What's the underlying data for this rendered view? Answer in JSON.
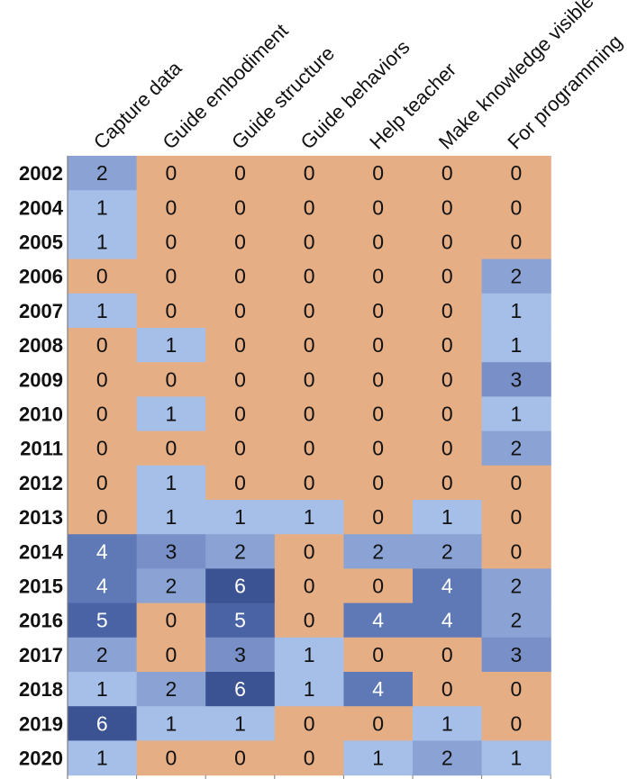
{
  "chart_data": {
    "type": "heatmap",
    "columns": [
      "Capture data",
      "Guide embodiment",
      "Guide structure",
      "Guide behaviors",
      "Help teacher",
      "Make knowledge visible",
      "For programming"
    ],
    "rows": [
      "2002",
      "2004",
      "2005",
      "2006",
      "2007",
      "2008",
      "2009",
      "2010",
      "2011",
      "2012",
      "2013",
      "2014",
      "2015",
      "2016",
      "2017",
      "2018",
      "2019",
      "2020"
    ],
    "values": [
      [
        2,
        0,
        0,
        0,
        0,
        0,
        0
      ],
      [
        1,
        0,
        0,
        0,
        0,
        0,
        0
      ],
      [
        1,
        0,
        0,
        0,
        0,
        0,
        0
      ],
      [
        0,
        0,
        0,
        0,
        0,
        0,
        2
      ],
      [
        1,
        0,
        0,
        0,
        0,
        0,
        1
      ],
      [
        0,
        1,
        0,
        0,
        0,
        0,
        1
      ],
      [
        0,
        0,
        0,
        0,
        0,
        0,
        3
      ],
      [
        0,
        1,
        0,
        0,
        0,
        0,
        1
      ],
      [
        0,
        0,
        0,
        0,
        0,
        0,
        2
      ],
      [
        0,
        1,
        0,
        0,
        0,
        0,
        0
      ],
      [
        0,
        1,
        1,
        1,
        0,
        1,
        0
      ],
      [
        4,
        3,
        2,
        0,
        2,
        2,
        0
      ],
      [
        4,
        2,
        6,
        0,
        0,
        4,
        2
      ],
      [
        5,
        0,
        5,
        0,
        4,
        4,
        2
      ],
      [
        2,
        0,
        3,
        1,
        0,
        0,
        3
      ],
      [
        1,
        2,
        6,
        1,
        4,
        0,
        0
      ],
      [
        6,
        1,
        1,
        0,
        0,
        1,
        0
      ],
      [
        1,
        0,
        0,
        0,
        1,
        2,
        1
      ]
    ],
    "colors": {
      "zero": "#e6ae85",
      "scale": {
        "1": "#a6bfe8",
        "2": "#8aa3d4",
        "3": "#7890c7",
        "4": "#5f79b6",
        "5": "#4a63a5",
        "6": "#3b5293"
      },
      "text_dark": "#111111",
      "text_light": "#ffffff",
      "grid": "#7f7f7f"
    },
    "white_text_threshold": 4
  }
}
